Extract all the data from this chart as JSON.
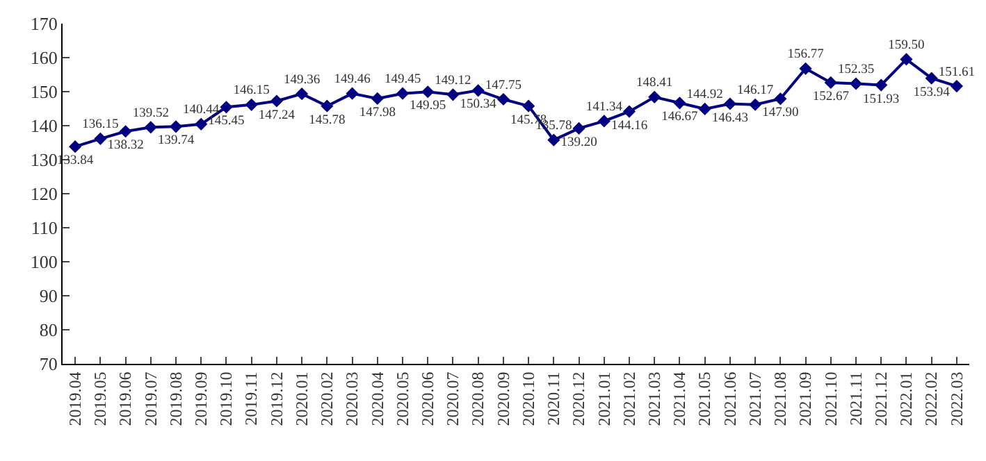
{
  "chart_data": {
    "type": "line",
    "categories": [
      "2019.04",
      "2019.05",
      "2019.06",
      "2019.07",
      "2019.08",
      "2019.09",
      "2019.10",
      "2019.11",
      "2019.12",
      "2020.01",
      "2020.02",
      "2020.03",
      "2020.04",
      "2020.05",
      "2020.06",
      "2020.07",
      "2020.08",
      "2020.09",
      "2020.10",
      "2020.11",
      "2020.12",
      "2021.01",
      "2021.02",
      "2021.03",
      "2021.04",
      "2021.05",
      "2021.06",
      "2021.07",
      "2021.08",
      "2021.09",
      "2021.10",
      "2021.11",
      "2021.12",
      "2022.01",
      "2022.02",
      "2022.03"
    ],
    "series": [
      {
        "color": "#000080",
        "values": [
          133.84,
          136.15,
          138.32,
          139.52,
          139.74,
          140.44,
          145.45,
          146.15,
          147.24,
          149.36,
          145.78,
          149.46,
          147.98,
          149.45,
          149.95,
          149.12,
          150.34,
          147.75,
          145.78,
          135.78,
          139.2,
          141.34,
          144.16,
          148.41,
          146.67,
          144.92,
          146.43,
          146.17,
          147.9,
          156.77,
          152.67,
          152.35,
          151.93,
          159.5,
          153.94,
          151.61
        ],
        "value_labels": [
          "133.84",
          "136.15",
          "138.32",
          "139.52",
          "139.74",
          "140.44",
          "145.45",
          "146.15",
          "147.24",
          "149.36",
          "145.78",
          "149.46",
          "147.98",
          "149.45",
          "149.95",
          "149.12",
          "150.34",
          "147.75",
          "145.78",
          "135.78",
          "139.20",
          "141.34",
          "144.16",
          "148.41",
          "146.67",
          "144.92",
          "146.43",
          "146.17",
          "147.90",
          "156.77",
          "152.67",
          "152.35",
          "151.93",
          "159.50",
          "153.94",
          "151.61"
        ]
      }
    ],
    "ylim": [
      70,
      170
    ],
    "yticks": [
      70,
      80,
      90,
      100,
      110,
      120,
      130,
      140,
      150,
      160,
      170
    ],
    "marker": "diamond",
    "line_style": "solid"
  }
}
